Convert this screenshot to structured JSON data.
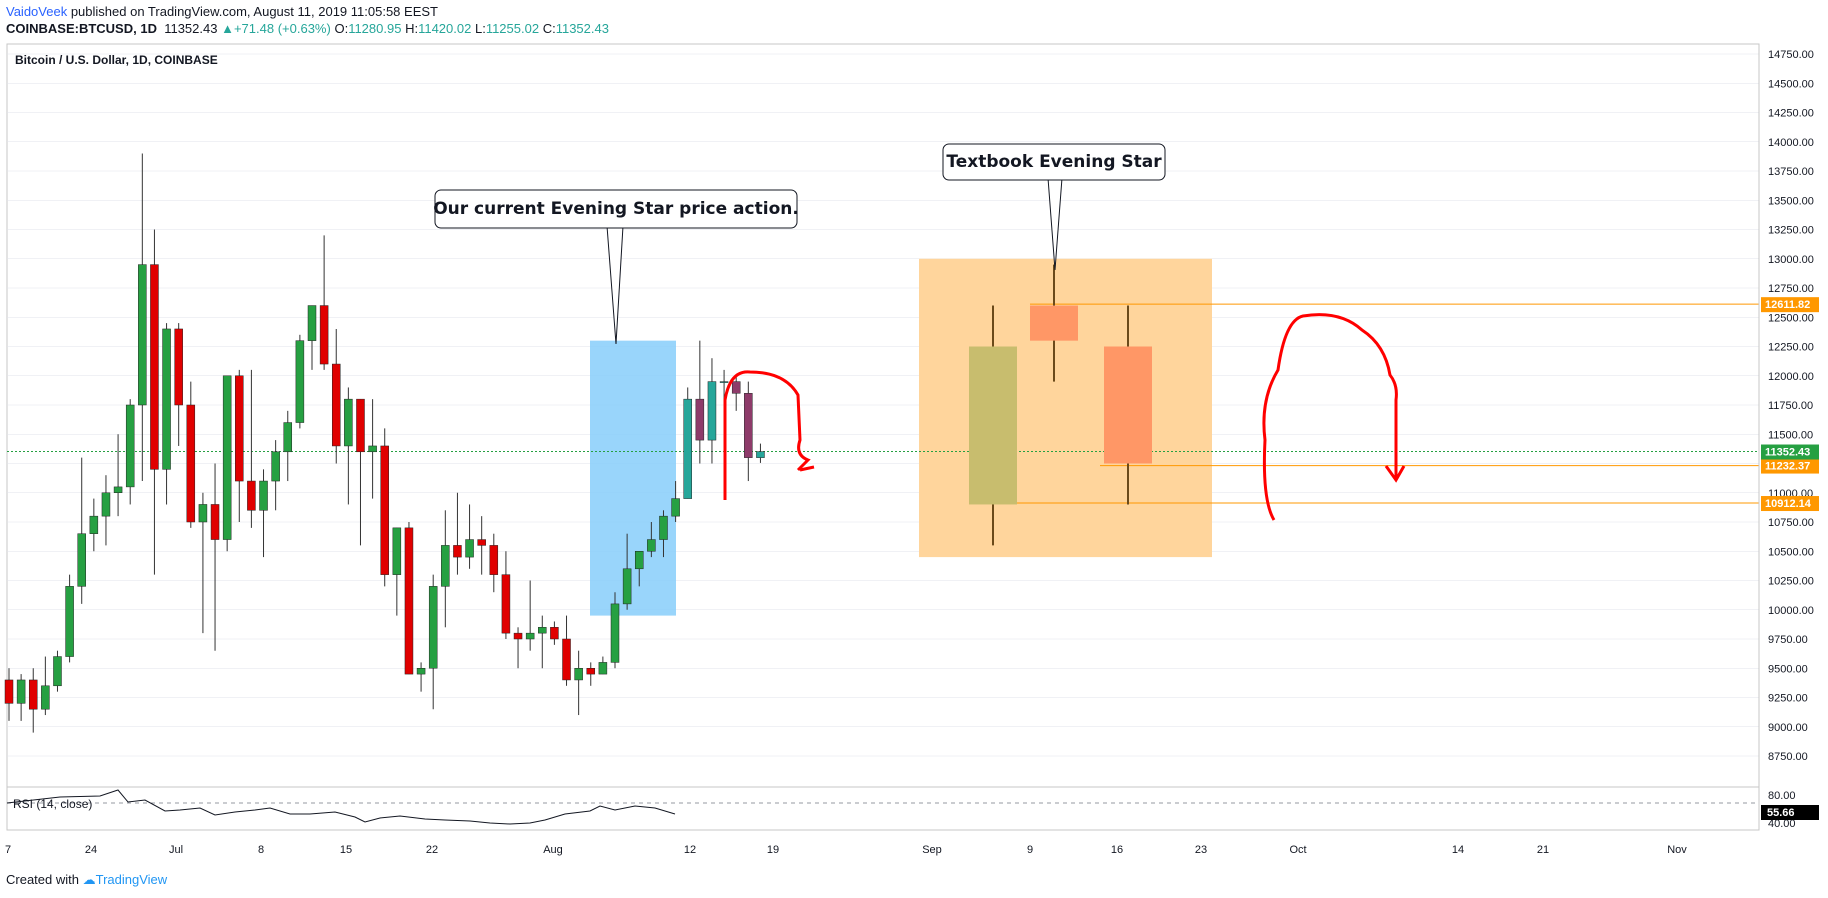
{
  "header": {
    "author": "VaidoVeek",
    "published_text": "published on TradingView.com, August 11, 2019 11:05:58 EEST",
    "symbol": "COINBASE:BTCUSD, 1D",
    "last": "11352.43",
    "change": "+71.48 (+0.63%)",
    "open_label": "O:",
    "open": "11280.95",
    "high_label": "H:",
    "high": "11420.02",
    "low_label": "L:",
    "low": "11255.02",
    "close_label": "C:",
    "close": "11352.43"
  },
  "footer": {
    "created_with": "Created with",
    "brand": "TradingView"
  },
  "colors": {
    "up": "#26a042",
    "down": "#e00000",
    "grid": "#e0e3eb",
    "highlight_blue": "#87cefa",
    "highlight_orange": "#ffd59c",
    "level": "#ff9800",
    "last_price": "#26a042"
  },
  "chart_data": [
    {
      "type": "candlestick",
      "title": "Bitcoin / U.S. Dollar, 1D, COINBASE",
      "ylim": [
        8750,
        14800
      ],
      "y_ticks": [
        "8750.00",
        "9000.00",
        "9250.00",
        "9500.00",
        "9750.00",
        "10000.00",
        "10250.00",
        "10500.00",
        "10750.00",
        "11000.00",
        "11250.00",
        "11500.00",
        "11750.00",
        "12000.00",
        "12250.00",
        "12500.00",
        "12750.00",
        "13000.00",
        "13250.00",
        "13500.00",
        "13750.00",
        "14000.00",
        "14250.00",
        "14500.00",
        "14750.00"
      ],
      "x_ticks": [
        "7",
        "24",
        "Jul",
        "8",
        "15",
        "22",
        "Aug",
        "12",
        "19",
        "Sep",
        "9",
        "16",
        "23",
        "Oct",
        "14",
        "21",
        "Nov"
      ],
      "candles": [
        [
          9400,
          9500,
          9050,
          9200
        ],
        [
          9200,
          9450,
          9050,
          9400
        ],
        [
          9400,
          9500,
          8950,
          9150
        ],
        [
          9150,
          9600,
          9100,
          9350
        ],
        [
          9350,
          9650,
          9300,
          9600
        ],
        [
          9600,
          10300,
          9550,
          10200
        ],
        [
          10200,
          11300,
          10050,
          10650
        ],
        [
          10650,
          10950,
          10500,
          10800
        ],
        [
          10800,
          11150,
          10550,
          11000
        ],
        [
          11000,
          11500,
          10800,
          11050
        ],
        [
          11050,
          11800,
          10900,
          11750
        ],
        [
          11750,
          13900,
          11100,
          12950
        ],
        [
          12950,
          13250,
          10300,
          11200
        ],
        [
          11200,
          12450,
          10900,
          12400
        ],
        [
          12400,
          12450,
          11400,
          11750
        ],
        [
          11750,
          11950,
          10700,
          10750
        ],
        [
          10750,
          11000,
          9800,
          10900
        ],
        [
          10900,
          11250,
          9650,
          10600
        ],
        [
          10600,
          12000,
          10500,
          12000
        ],
        [
          12000,
          12050,
          10750,
          11100
        ],
        [
          11100,
          12050,
          10700,
          10850
        ],
        [
          10850,
          11200,
          10450,
          11100
        ],
        [
          11100,
          11450,
          10850,
          11350
        ],
        [
          11350,
          11700,
          11100,
          11600
        ],
        [
          11600,
          12350,
          11550,
          12300
        ],
        [
          12300,
          12600,
          12050,
          12600
        ],
        [
          12600,
          13200,
          12050,
          12100
        ],
        [
          12100,
          12400,
          11250,
          11400
        ],
        [
          11400,
          11900,
          10900,
          11800
        ],
        [
          11800,
          11800,
          10550,
          11350
        ],
        [
          11350,
          11800,
          10950,
          11400
        ],
        [
          11400,
          11550,
          10200,
          10300
        ],
        [
          10300,
          10700,
          9950,
          10700
        ],
        [
          10700,
          10750,
          9450,
          9450
        ],
        [
          9450,
          9550,
          9300,
          9500
        ],
        [
          9500,
          10300,
          9150,
          10200
        ],
        [
          10200,
          10850,
          9850,
          10550
        ],
        [
          10550,
          11000,
          10300,
          10450
        ],
        [
          10450,
          10900,
          10350,
          10600
        ],
        [
          10600,
          10800,
          10300,
          10550
        ],
        [
          10550,
          10650,
          10150,
          10300
        ],
        [
          10300,
          10500,
          9750,
          9800
        ],
        [
          9800,
          9850,
          9500,
          9750
        ],
        [
          9750,
          10250,
          9650,
          9800
        ],
        [
          9800,
          9950,
          9500,
          9850
        ],
        [
          9850,
          9900,
          9700,
          9750
        ],
        [
          9750,
          9950,
          9350,
          9400
        ],
        [
          9400,
          9650,
          9100,
          9500
        ],
        [
          9500,
          9550,
          9350,
          9450
        ],
        [
          9450,
          9600,
          9450,
          9550
        ],
        [
          9550,
          10150,
          9500,
          10050
        ],
        [
          10050,
          10650,
          10000,
          10350
        ],
        [
          10350,
          10500,
          10200,
          10500
        ],
        [
          10500,
          10750,
          10450,
          10600
        ],
        [
          10600,
          10850,
          10450,
          10800
        ],
        [
          10800,
          11100,
          10750,
          10950
        ],
        [
          10950,
          11900,
          10950,
          11800
        ],
        [
          11800,
          12300,
          11250,
          11450
        ],
        [
          11450,
          12150,
          11250,
          11950
        ],
        [
          11950,
          12050,
          11300,
          11950
        ],
        [
          11950,
          12000,
          11700,
          11850
        ],
        [
          11850,
          11950,
          11100,
          11300
        ],
        [
          11300,
          11420,
          11255,
          11352
        ]
      ],
      "last_price": "11352.43",
      "levels": [
        "12611.82",
        "11232.37",
        "10912.14"
      ],
      "annotations": [
        "Our current Evening Star price action.",
        "Textbook Evening Star"
      ],
      "textbook_pattern": [
        [
          10900,
          12600,
          10550,
          12250
        ],
        [
          12300,
          12950,
          11950,
          12600
        ],
        [
          12250,
          12600,
          10900,
          11250
        ]
      ]
    },
    {
      "type": "line",
      "title": "RSI (14, close)",
      "ylim": [
        40,
        80
      ],
      "y_ticks": [
        "80.00",
        "40.00"
      ],
      "last_value": "55.66"
    }
  ]
}
